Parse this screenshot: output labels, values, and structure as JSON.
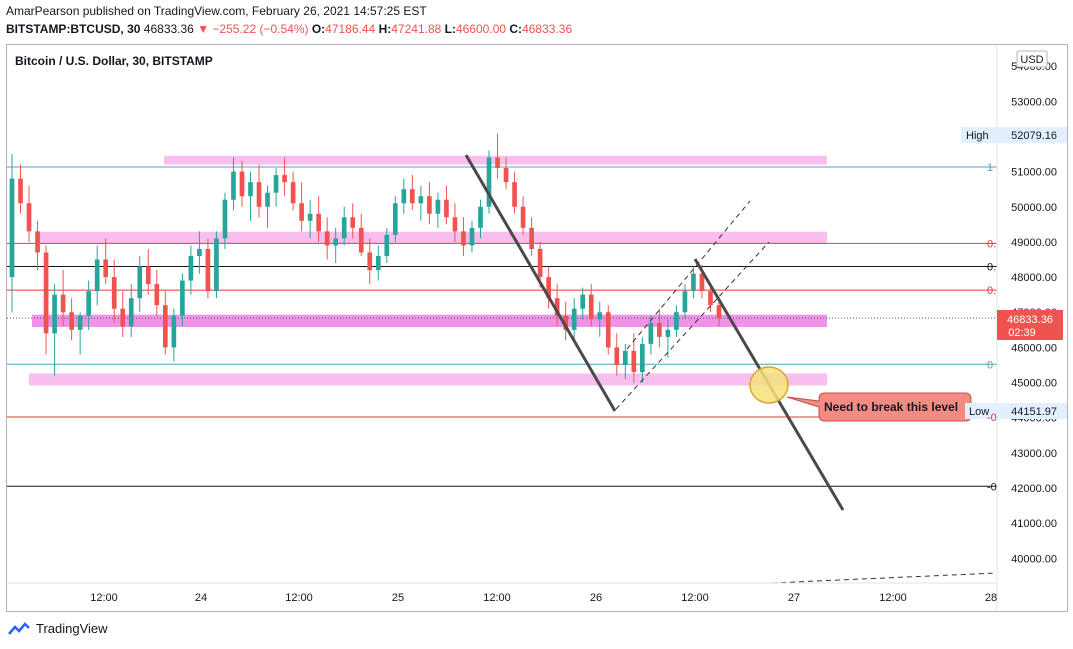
{
  "header": {
    "publish_line": "AmarPearson published on TradingView.com, February 26, 2021 14:57:25 EST",
    "symbol": "BITSTAMP:BTCUSD, 30",
    "last": "46833.36",
    "change": "▼ −255.22 (−0.54%)",
    "o_label": "O:",
    "o_value": "47186.44",
    "h_label": "H:",
    "h_value": "47241.88",
    "l_label": "L:",
    "l_value": "46600.00",
    "c_label": "C:",
    "c_value": "46833.36"
  },
  "footer": {
    "brand": "TradingView"
  },
  "colors": {
    "up": "#26a69a",
    "down": "#ef5350",
    "zone": "#f5a3e6",
    "zone_mid": "#e96fe0",
    "callout": "#f28b82",
    "circle": "#f6e27a"
  },
  "chart_data": {
    "type": "candlestick",
    "title": "Bitcoin / U.S. Dollar, 30, BITSTAMP",
    "currency": "USD",
    "ylim": [
      39300,
      54600
    ],
    "y_ticks": [
      "40000.00",
      "41000.00",
      "42000.00",
      "43000.00",
      "44000.00",
      "45000.00",
      "46000.00",
      "47000.00",
      "48000.00",
      "49000.00",
      "50000.00",
      "51000.00",
      "52000.00",
      "53000.00",
      "54000.00"
    ],
    "x_ticks": [
      "12:00",
      "24",
      "12:00",
      "25",
      "12:00",
      "26",
      "12:00",
      "27",
      "12:00",
      "28"
    ],
    "last_price": "46833.36",
    "countdown": "02:39",
    "high_label": "High",
    "high_value": "52079.16",
    "low_label": "Low",
    "low_value": "44151.97",
    "fib_labels": [
      "1",
      "0.",
      "0.",
      "0.",
      "0",
      "-0",
      "-0"
    ],
    "annotation": "Need to break this level",
    "horizontal_lines": [
      51130,
      48960,
      48300,
      47630,
      45520,
      44020,
      42050
    ],
    "zones": [
      {
        "from": 51200,
        "to": 51450
      },
      {
        "from": 48960,
        "to": 49290
      },
      {
        "from": 46580,
        "to": 46930
      },
      {
        "from": 44920,
        "to": 45260
      }
    ],
    "candles": [
      [
        48000,
        51500,
        47000,
        50800
      ],
      [
        50800,
        51200,
        49800,
        50100
      ],
      [
        50100,
        50600,
        49000,
        49300
      ],
      [
        49300,
        49600,
        48200,
        48700
      ],
      [
        48700,
        48900,
        45800,
        46400
      ],
      [
        46400,
        47800,
        45200,
        47500
      ],
      [
        47500,
        48200,
        46600,
        47000
      ],
      [
        47000,
        47400,
        46200,
        46500
      ],
      [
        46500,
        47000,
        45800,
        46900
      ],
      [
        46900,
        47900,
        46500,
        47600
      ],
      [
        47600,
        48900,
        47200,
        48500
      ],
      [
        48500,
        49100,
        47800,
        48000
      ],
      [
        48000,
        48500,
        46700,
        47100
      ],
      [
        47100,
        47600,
        46300,
        46600
      ],
      [
        46600,
        47800,
        46300,
        47400
      ],
      [
        47400,
        48600,
        47000,
        48300
      ],
      [
        48300,
        48800,
        47500,
        47800
      ],
      [
        47800,
        48200,
        46900,
        47200
      ],
      [
        47200,
        47600,
        45800,
        46000
      ],
      [
        46000,
        47100,
        45600,
        46900
      ],
      [
        46900,
        48100,
        46600,
        47900
      ],
      [
        47900,
        48900,
        47500,
        48600
      ],
      [
        48600,
        49300,
        48100,
        48800
      ],
      [
        48800,
        49100,
        47400,
        47600
      ],
      [
        47600,
        49300,
        47400,
        49100
      ],
      [
        49100,
        50400,
        48800,
        50200
      ],
      [
        50200,
        51400,
        49900,
        51000
      ],
      [
        51000,
        51300,
        50000,
        50300
      ],
      [
        50300,
        51000,
        49600,
        50700
      ],
      [
        50700,
        51200,
        49700,
        50000
      ],
      [
        50000,
        50600,
        49400,
        50400
      ],
      [
        50400,
        51100,
        50000,
        50900
      ],
      [
        50900,
        51400,
        50300,
        50700
      ],
      [
        50700,
        51000,
        49900,
        50100
      ],
      [
        50100,
        50700,
        49300,
        49600
      ],
      [
        49600,
        50200,
        49100,
        49800
      ],
      [
        49800,
        50300,
        49000,
        49300
      ],
      [
        49300,
        49700,
        48500,
        48900
      ],
      [
        48900,
        49400,
        48400,
        49100
      ],
      [
        49100,
        50000,
        48900,
        49700
      ],
      [
        49700,
        50100,
        49100,
        49400
      ],
      [
        49400,
        49800,
        48600,
        48700
      ],
      [
        48700,
        49100,
        47800,
        48200
      ],
      [
        48200,
        48900,
        47900,
        48600
      ],
      [
        48600,
        49400,
        48400,
        49200
      ],
      [
        49200,
        50300,
        49000,
        50100
      ],
      [
        50100,
        50800,
        49800,
        50500
      ],
      [
        50500,
        50900,
        49900,
        50100
      ],
      [
        50100,
        50600,
        49600,
        50300
      ],
      [
        50300,
        50700,
        49500,
        49800
      ],
      [
        49800,
        50400,
        49400,
        50200
      ],
      [
        50200,
        50600,
        49500,
        49700
      ],
      [
        49700,
        50100,
        49000,
        49300
      ],
      [
        49300,
        49700,
        48600,
        48900
      ],
      [
        48900,
        49600,
        48700,
        49400
      ],
      [
        49400,
        50200,
        49100,
        50000
      ],
      [
        50000,
        51600,
        49800,
        51400
      ],
      [
        51400,
        52079,
        50800,
        51100
      ],
      [
        51100,
        51400,
        50500,
        50700
      ],
      [
        50700,
        51000,
        49800,
        50000
      ],
      [
        50000,
        50300,
        49200,
        49400
      ],
      [
        49400,
        49700,
        48600,
        48800
      ],
      [
        48800,
        49000,
        47700,
        48000
      ],
      [
        48000,
        48300,
        47100,
        47400
      ],
      [
        47400,
        47800,
        46600,
        46900
      ],
      [
        46900,
        47300,
        46200,
        46500
      ],
      [
        46500,
        47400,
        46200,
        47100
      ],
      [
        47100,
        47700,
        46800,
        47500
      ],
      [
        47500,
        47800,
        46600,
        46800
      ],
      [
        46800,
        47300,
        46300,
        47000
      ],
      [
        47000,
        47200,
        45800,
        46000
      ],
      [
        46000,
        46400,
        45200,
        45500
      ],
      [
        45500,
        46100,
        45100,
        45900
      ],
      [
        45900,
        46400,
        45000,
        45300
      ],
      [
        45300,
        46300,
        45000,
        46100
      ],
      [
        46100,
        46900,
        45800,
        46700
      ],
      [
        46700,
        47100,
        46000,
        46300
      ],
      [
        46300,
        46800,
        45700,
        46500
      ],
      [
        46500,
        47200,
        46300,
        47000
      ],
      [
        47000,
        47800,
        46800,
        47600
      ],
      [
        47600,
        48300,
        47400,
        48100
      ],
      [
        48100,
        48350,
        47400,
        47600
      ],
      [
        47600,
        47800,
        47000,
        47200
      ],
      [
        47200,
        47300,
        46600,
        46833.36
      ]
    ]
  }
}
